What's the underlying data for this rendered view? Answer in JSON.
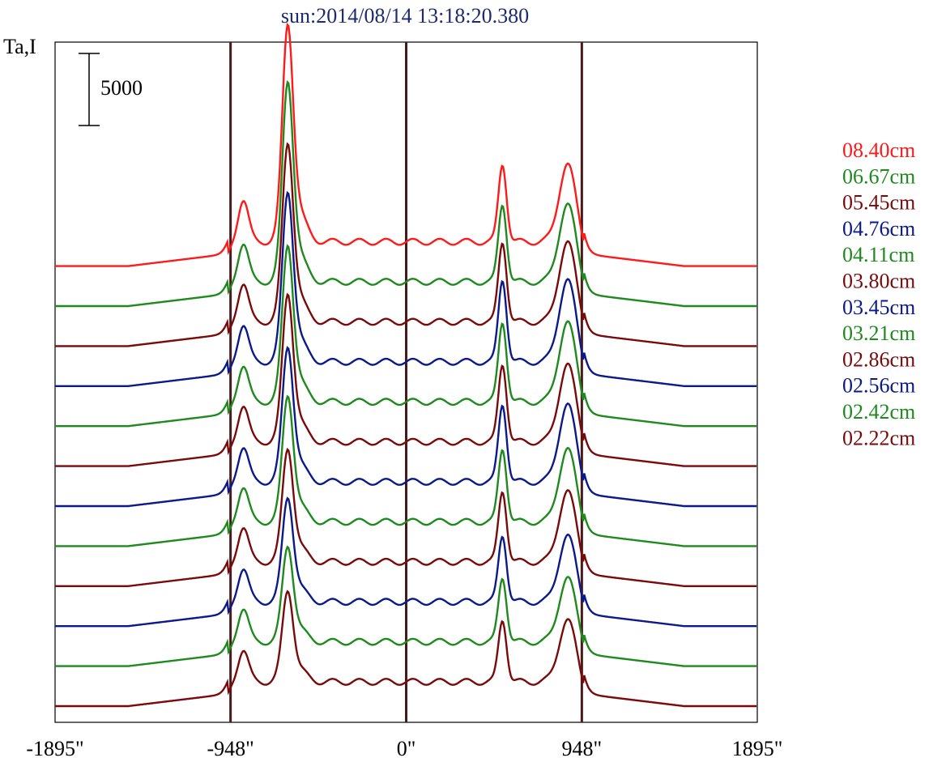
{
  "chart_data": {
    "type": "line",
    "title": "sun:2014/08/14 13:18:20.380",
    "ylabel": "Ta,I",
    "xlim": [
      -1895,
      1895
    ],
    "x_ticks": [
      {
        "value": -1895,
        "label": "-1895\""
      },
      {
        "value": -948,
        "label": "-948\""
      },
      {
        "value": 0,
        "label": "0\""
      },
      {
        "value": 948,
        "label": "948\""
      },
      {
        "value": 1895,
        "label": "1895\""
      }
    ],
    "reference_lines_x": [
      -948,
      0,
      948
    ],
    "scale_bar": {
      "value": 5000,
      "label": "5000"
    },
    "series_style": "stacked scans offset vertically, top = 08.40cm",
    "series": [
      {
        "name": "08.40cm",
        "color": "#ff1a1a",
        "offset": 11,
        "peak_left": 1.0,
        "peak_right": 0.7,
        "left_shoulder": 0.6
      },
      {
        "name": "06.67cm",
        "color": "#1e8a1e",
        "offset": 10,
        "peak_left": 0.92,
        "peak_right": 0.7,
        "left_shoulder": 0.55
      },
      {
        "name": "05.45cm",
        "color": "#7a0a0a",
        "offset": 9,
        "peak_left": 0.82,
        "peak_right": 0.72,
        "left_shoulder": 0.55
      },
      {
        "name": "04.76cm",
        "color": "#0a1a8a",
        "offset": 8,
        "peak_left": 0.78,
        "peak_right": 0.74,
        "left_shoulder": 0.53
      },
      {
        "name": "04.11cm",
        "color": "#1e8a1e",
        "offset": 7,
        "peak_left": 0.72,
        "peak_right": 0.72,
        "left_shoulder": 0.52
      },
      {
        "name": "03.80cm",
        "color": "#7a0a0a",
        "offset": 6,
        "peak_left": 0.68,
        "peak_right": 0.7,
        "left_shoulder": 0.52
      },
      {
        "name": "03.45cm",
        "color": "#0a1a8a",
        "offset": 5,
        "peak_left": 0.62,
        "peak_right": 0.7,
        "left_shoulder": 0.5
      },
      {
        "name": "03.21cm",
        "color": "#1e8a1e",
        "offset": 4,
        "peak_left": 0.58,
        "peak_right": 0.66,
        "left_shoulder": 0.5
      },
      {
        "name": "02.86cm",
        "color": "#7a0a0a",
        "offset": 3,
        "peak_left": 0.52,
        "peak_right": 0.64,
        "left_shoulder": 0.5
      },
      {
        "name": "02.56cm",
        "color": "#0a1a8a",
        "offset": 2,
        "peak_left": 0.48,
        "peak_right": 0.6,
        "left_shoulder": 0.48
      },
      {
        "name": "02.42cm",
        "color": "#1e8a1e",
        "offset": 1,
        "peak_left": 0.44,
        "peak_right": 0.58,
        "left_shoulder": 0.48
      },
      {
        "name": "02.22cm",
        "color": "#7a0a0a",
        "offset": 0,
        "peak_left": 0.42,
        "peak_right": 0.56,
        "left_shoulder": 0.46
      }
    ]
  }
}
